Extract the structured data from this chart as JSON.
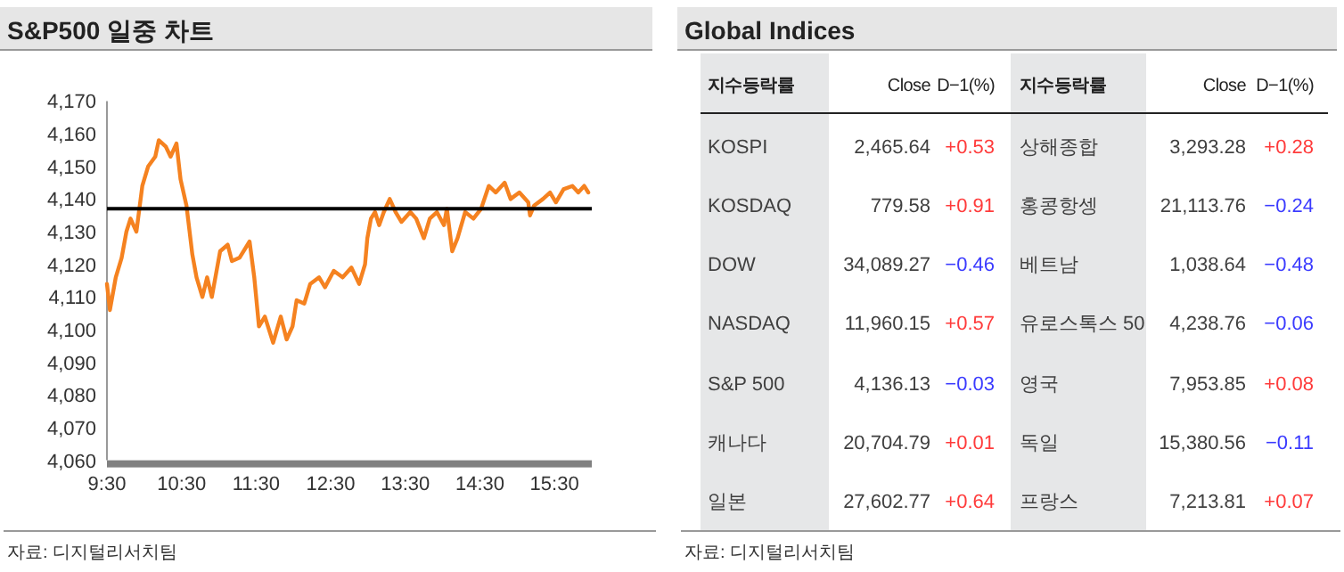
{
  "chart_data": [
    {
      "type": "line",
      "title": "S&P500 일중 차트",
      "annotations": [
        "자료: 디지털리서치팀"
      ],
      "series": [
        {
          "color": "#f58220",
          "x": [
            9.5,
            9.54,
            9.618,
            9.697,
            9.761,
            9.816,
            9.895,
            9.974,
            10.053,
            10.148,
            10.195,
            10.29,
            10.353,
            10.432,
            10.487,
            10.566,
            10.645,
            10.701,
            10.78,
            10.843,
            10.906,
            11.017,
            11.119,
            11.175,
            11.277,
            11.412,
            11.475,
            11.538,
            11.617,
            11.728,
            11.83,
            11.909,
            11.988,
            12.043,
            12.146,
            12.225,
            12.344,
            12.423,
            12.541,
            12.66,
            12.778,
            12.881,
            12.96,
            12.991,
            13.039,
            13.094,
            13.149,
            13.212,
            13.291,
            13.37,
            13.449,
            13.567,
            13.646,
            13.749,
            13.828,
            13.923,
            14.018,
            14.057,
            14.129,
            14.2,
            14.302,
            14.413,
            14.516,
            14.619,
            14.713,
            14.832,
            14.911,
            15.029,
            15.148,
            15.172,
            15.227,
            15.345,
            15.44,
            15.519,
            15.622,
            15.74,
            15.819,
            15.898,
            15.953
          ],
          "values": [
            4114,
            4106,
            4116,
            4122,
            4130,
            4134,
            4130,
            4144,
            4150,
            4153,
            4158,
            4156,
            4153,
            4157,
            4146,
            4138,
            4123,
            4116,
            4110,
            4116,
            4110,
            4124,
            4126,
            4121,
            4122,
            4127,
            4116,
            4101,
            4104,
            4096,
            4104,
            4097,
            4101,
            4109,
            4108,
            4114,
            4116,
            4113,
            4118,
            4116,
            4119,
            4114,
            4120,
            4128,
            4134,
            4136,
            4132,
            4136,
            4140,
            4136,
            4133,
            4136,
            4134,
            4128,
            4134,
            4136,
            4132,
            4137,
            4124,
            4128,
            4136,
            4134,
            4137,
            4144,
            4142,
            4145,
            4140,
            4142,
            4139,
            4135,
            4138,
            4140,
            4142,
            4139,
            4143,
            4144,
            4142,
            4144,
            4142
          ]
        }
      ],
      "xlim": [
        9.5,
        16
      ],
      "xticks": [
        {
          "value": 9.5,
          "label": "9:30"
        },
        {
          "value": 10.5,
          "label": "10:30"
        },
        {
          "value": 11.5,
          "label": "11:30"
        },
        {
          "value": 12.5,
          "label": "12:30"
        },
        {
          "value": 13.5,
          "label": "13:30"
        },
        {
          "value": 14.5,
          "label": "14:30"
        },
        {
          "value": 15.5,
          "label": "15:30"
        }
      ],
      "ylim": [
        4060,
        4170
      ],
      "yticks": [
        {
          "value": 4060,
          "label": "4,060"
        },
        {
          "value": 4070,
          "label": "4,070"
        },
        {
          "value": 4080,
          "label": "4,080"
        },
        {
          "value": 4090,
          "label": "4,090"
        },
        {
          "value": 4100,
          "label": "4,100"
        },
        {
          "value": 4110,
          "label": "4,110"
        },
        {
          "value": 4120,
          "label": "4,120"
        },
        {
          "value": 4130,
          "label": "4,130"
        },
        {
          "value": 4140,
          "label": "4,140"
        },
        {
          "value": 4150,
          "label": "4,150"
        },
        {
          "value": 4160,
          "label": "4,160"
        },
        {
          "value": 4170,
          "label": "4,170"
        }
      ],
      "ref_lines": [
        {
          "axis": "y",
          "value": 4137,
          "color": "#000000"
        }
      ],
      "grid": false,
      "line_style": "solid"
    },
    {
      "type": "other",
      "title": "Global Indices",
      "annotations": [
        "지수등락률",
        "Close",
        "D−1(%)",
        "지수등락률",
        "Close",
        "D−1(%)",
        "KOSPI",
        "2,465.64",
        "+0.53",
        "상해종합",
        "3,293.28",
        "+0.28",
        "KOSDAQ",
        "779.58",
        "+0.91",
        "홍콩항셍",
        "21,113.76",
        "−0.24",
        "DOW",
        "34,089.27",
        "−0.46",
        "베트남",
        "1,038.64",
        "−0.48",
        "NASDAQ",
        "11,960.15",
        "+0.57",
        "유로스톡스 50",
        "4,238.76",
        "−0.06",
        "S&P 500",
        "4,136.13",
        "−0.03",
        "영국",
        "7,953.85",
        "+0.08",
        "캐나다",
        "20,704.79",
        "+0.01",
        "독일",
        "15,380.56",
        "−0.11",
        "일본",
        "27,602.77",
        "+0.64",
        "프랑스",
        "7,213.81",
        "+0.07",
        "자료: 디지털리서치팀"
      ],
      "colors": [
        "#222222",
        "#222222",
        "#222222",
        "#222222",
        "#222222",
        "#222222",
        "#404040",
        "#404040",
        "#ff3b3b",
        "#404040",
        "#404040",
        "#ff3b3b",
        "#404040",
        "#404040",
        "#ff3b3b",
        "#404040",
        "#404040",
        "#3b3bff",
        "#404040",
        "#404040",
        "#3b3bff",
        "#404040",
        "#404040",
        "#3b3bff",
        "#404040",
        "#404040",
        "#ff3b3b",
        "#404040",
        "#404040",
        "#3b3bff",
        "#404040",
        "#404040",
        "#3b3bff",
        "#404040",
        "#404040",
        "#ff3b3b",
        "#404040",
        "#404040",
        "#ff3b3b",
        "#404040",
        "#404040",
        "#3b3bff",
        "#404040",
        "#404040",
        "#ff3b3b",
        "#404040",
        "#404040",
        "#ff3b3b"
      ]
    }
  ]
}
